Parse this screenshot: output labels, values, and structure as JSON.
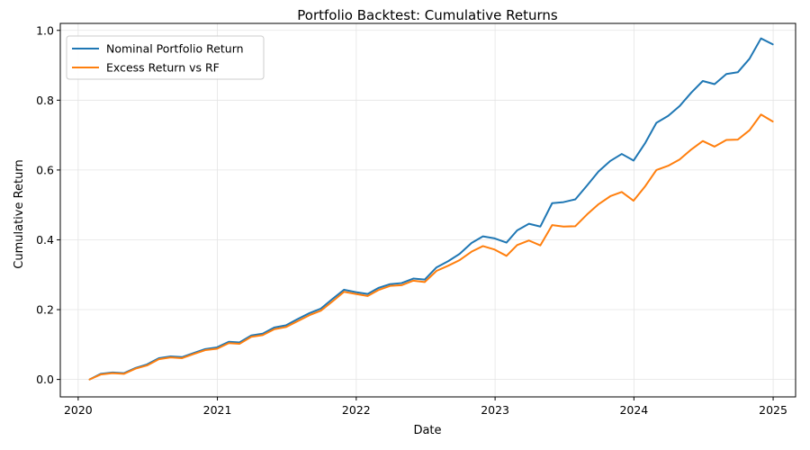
{
  "chart_data": {
    "type": "line",
    "title": "Portfolio Backtest: Cumulative Returns",
    "xlabel": "Date",
    "ylabel": "Cumulative Return",
    "xlim": [
      "2019-11-15",
      "2025-03-01"
    ],
    "ylim": [
      -0.05,
      1.02
    ],
    "xticks": [
      {
        "date": "2020-01-01",
        "label": "2020"
      },
      {
        "date": "2021-01-01",
        "label": "2021"
      },
      {
        "date": "2022-01-01",
        "label": "2022"
      },
      {
        "date": "2023-01-01",
        "label": "2023"
      },
      {
        "date": "2024-01-01",
        "label": "2024"
      },
      {
        "date": "2025-01-01",
        "label": "2025"
      }
    ],
    "yticks": [
      0.0,
      0.2,
      0.4,
      0.6,
      0.8,
      1.0
    ],
    "ytick_labels": [
      "0.0",
      "0.2",
      "0.4",
      "0.6",
      "0.8",
      "1.0"
    ],
    "grid": true,
    "legend_position": "upper-left",
    "x": [
      "2020-01-31",
      "2020-02-29",
      "2020-03-31",
      "2020-04-30",
      "2020-05-31",
      "2020-06-30",
      "2020-07-31",
      "2020-08-31",
      "2020-09-30",
      "2020-10-31",
      "2020-11-30",
      "2020-12-31",
      "2021-01-31",
      "2021-02-28",
      "2021-03-31",
      "2021-04-30",
      "2021-05-31",
      "2021-06-30",
      "2021-07-31",
      "2021-08-31",
      "2021-09-30",
      "2021-10-31",
      "2021-11-30",
      "2021-12-31",
      "2022-01-31",
      "2022-02-28",
      "2022-03-31",
      "2022-04-30",
      "2022-05-31",
      "2022-06-30",
      "2022-07-31",
      "2022-08-31",
      "2022-09-30",
      "2022-10-31",
      "2022-11-30",
      "2022-12-31",
      "2023-01-31",
      "2023-02-28",
      "2023-03-31",
      "2023-04-30",
      "2023-05-31",
      "2023-06-30",
      "2023-07-31",
      "2023-08-31",
      "2023-09-30",
      "2023-10-31",
      "2023-11-30",
      "2023-12-31",
      "2024-01-31",
      "2024-02-29",
      "2024-03-31",
      "2024-04-30",
      "2024-05-31",
      "2024-06-30",
      "2024-07-31",
      "2024-08-31",
      "2024-09-30",
      "2024-10-31",
      "2024-11-30",
      "2024-12-31"
    ],
    "series": [
      {
        "name": "Nominal Portfolio Return",
        "color": "#1f77b4",
        "values": [
          0.0,
          0.016,
          0.02,
          0.018,
          0.033,
          0.043,
          0.061,
          0.066,
          0.064,
          0.076,
          0.087,
          0.092,
          0.108,
          0.106,
          0.126,
          0.131,
          0.149,
          0.155,
          0.173,
          0.19,
          0.203,
          0.231,
          0.257,
          0.25,
          0.245,
          0.262,
          0.273,
          0.276,
          0.289,
          0.286,
          0.321,
          0.339,
          0.36,
          0.391,
          0.41,
          0.404,
          0.392,
          0.427,
          0.446,
          0.438,
          0.505,
          0.508,
          0.516,
          0.556,
          0.596,
          0.626,
          0.646,
          0.627,
          0.678,
          0.735,
          0.755,
          0.783,
          0.822,
          0.855,
          0.846,
          0.875,
          0.88,
          0.919,
          0.977,
          0.96
        ]
      },
      {
        "name": "Excess Return vs RF",
        "color": "#ff7f0e",
        "values": [
          0.0,
          0.014,
          0.018,
          0.016,
          0.031,
          0.04,
          0.058,
          0.063,
          0.061,
          0.073,
          0.084,
          0.088,
          0.104,
          0.102,
          0.122,
          0.127,
          0.144,
          0.15,
          0.167,
          0.184,
          0.197,
          0.224,
          0.251,
          0.245,
          0.239,
          0.256,
          0.268,
          0.27,
          0.283,
          0.279,
          0.311,
          0.326,
          0.342,
          0.366,
          0.382,
          0.372,
          0.354,
          0.385,
          0.398,
          0.384,
          0.442,
          0.438,
          0.439,
          0.473,
          0.502,
          0.525,
          0.537,
          0.512,
          0.554,
          0.6,
          0.612,
          0.63,
          0.659,
          0.683,
          0.667,
          0.686,
          0.687,
          0.714,
          0.759,
          0.739
        ]
      }
    ]
  }
}
